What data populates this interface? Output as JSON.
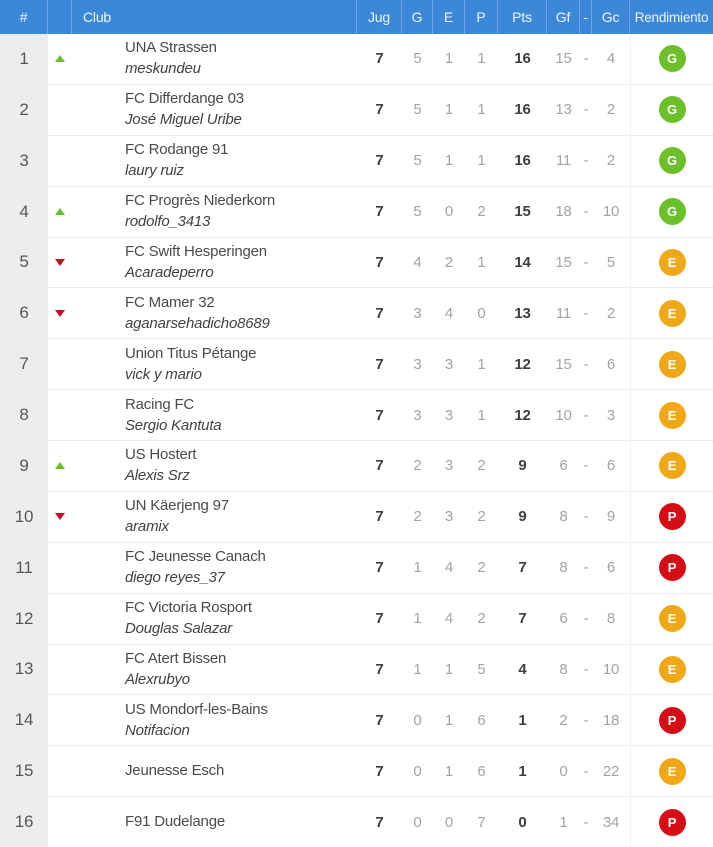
{
  "colors": {
    "header_bg": "#3b88d8",
    "header_text": "#eef6ff",
    "rank_col_bg": "#ededed",
    "row_border": "#ececec",
    "team_text": "#4a4a4a",
    "manager_text": "#424242",
    "text_gray": "#a3a3a3",
    "text_dark": "#3e3e3e",
    "badge_g": "#6cc02a",
    "badge_e": "#f0a818",
    "badge_p": "#d70d15",
    "arrow_up": "#6cbf2a",
    "arrow_down": "#bf1222"
  },
  "table": {
    "columns": {
      "rank": "#",
      "club": "Club",
      "played": "Jug",
      "won": "G",
      "drawn": "E",
      "lost": "P",
      "points": "Pts",
      "goals_for": "Gf",
      "goals_sep": "-",
      "goals_against": "Gc",
      "performance": "Rendimiento"
    },
    "rows": [
      {
        "rank": "1",
        "movement": "up",
        "club": "UNA Strassen",
        "manager": "meskundeu",
        "played": "7",
        "won": "5",
        "drawn": "1",
        "lost": "1",
        "points": "16",
        "gf": "15",
        "sep": "-",
        "gc": "4",
        "performance": "G"
      },
      {
        "rank": "2",
        "movement": "none",
        "club": "FC Differdange 03",
        "manager": "José Miguel Uribe",
        "played": "7",
        "won": "5",
        "drawn": "1",
        "lost": "1",
        "points": "16",
        "gf": "13",
        "sep": "-",
        "gc": "2",
        "performance": "G"
      },
      {
        "rank": "3",
        "movement": "none",
        "club": "FC Rodange 91",
        "manager": "laury ruiz",
        "played": "7",
        "won": "5",
        "drawn": "1",
        "lost": "1",
        "points": "16",
        "gf": "11",
        "sep": "-",
        "gc": "2",
        "performance": "G"
      },
      {
        "rank": "4",
        "movement": "up",
        "club": "FC Progrès Niederkorn",
        "manager": "rodolfo_3413",
        "played": "7",
        "won": "5",
        "drawn": "0",
        "lost": "2",
        "points": "15",
        "gf": "18",
        "sep": "-",
        "gc": "10",
        "performance": "G"
      },
      {
        "rank": "5",
        "movement": "down",
        "club": "FC Swift Hesperingen",
        "manager": "Acaradeperro",
        "played": "7",
        "won": "4",
        "drawn": "2",
        "lost": "1",
        "points": "14",
        "gf": "15",
        "sep": "-",
        "gc": "5",
        "performance": "E"
      },
      {
        "rank": "6",
        "movement": "down",
        "club": "FC Mamer 32",
        "manager": "aganarsehadicho8689",
        "played": "7",
        "won": "3",
        "drawn": "4",
        "lost": "0",
        "points": "13",
        "gf": "11",
        "sep": "-",
        "gc": "2",
        "performance": "E"
      },
      {
        "rank": "7",
        "movement": "none",
        "club": "Union Titus Pétange",
        "manager": "vick y mario",
        "played": "7",
        "won": "3",
        "drawn": "3",
        "lost": "1",
        "points": "12",
        "gf": "15",
        "sep": "-",
        "gc": "6",
        "performance": "E"
      },
      {
        "rank": "8",
        "movement": "none",
        "club": "Racing FC",
        "manager": "Sergio Kantuta",
        "played": "7",
        "won": "3",
        "drawn": "3",
        "lost": "1",
        "points": "12",
        "gf": "10",
        "sep": "-",
        "gc": "3",
        "performance": "E"
      },
      {
        "rank": "9",
        "movement": "up",
        "club": "US Hostert",
        "manager": "Alexis Srz",
        "played": "7",
        "won": "2",
        "drawn": "3",
        "lost": "2",
        "points": "9",
        "gf": "6",
        "sep": "-",
        "gc": "6",
        "performance": "E"
      },
      {
        "rank": "10",
        "movement": "down",
        "club": "UN Käerjeng 97",
        "manager": "aramix",
        "played": "7",
        "won": "2",
        "drawn": "3",
        "lost": "2",
        "points": "9",
        "gf": "8",
        "sep": "-",
        "gc": "9",
        "performance": "P"
      },
      {
        "rank": "11",
        "movement": "none",
        "club": "FC Jeunesse Canach",
        "manager": "diego reyes_37",
        "played": "7",
        "won": "1",
        "drawn": "4",
        "lost": "2",
        "points": "7",
        "gf": "8",
        "sep": "-",
        "gc": "6",
        "performance": "P"
      },
      {
        "rank": "12",
        "movement": "none",
        "club": "FC Victoria Rosport",
        "manager": "Douglas Salazar",
        "played": "7",
        "won": "1",
        "drawn": "4",
        "lost": "2",
        "points": "7",
        "gf": "6",
        "sep": "-",
        "gc": "8",
        "performance": "E"
      },
      {
        "rank": "13",
        "movement": "none",
        "club": "FC Atert Bissen",
        "manager": "Alexrubyo",
        "played": "7",
        "won": "1",
        "drawn": "1",
        "lost": "5",
        "points": "4",
        "gf": "8",
        "sep": "-",
        "gc": "10",
        "performance": "E"
      },
      {
        "rank": "14",
        "movement": "none",
        "club": "US Mondorf-les-Bains",
        "manager": "Notifacion",
        "played": "7",
        "won": "0",
        "drawn": "1",
        "lost": "6",
        "points": "1",
        "gf": "2",
        "sep": "-",
        "gc": "18",
        "performance": "P"
      },
      {
        "rank": "15",
        "movement": "none",
        "club": "Jeunesse Esch",
        "manager": "",
        "played": "7",
        "won": "0",
        "drawn": "1",
        "lost": "6",
        "points": "1",
        "gf": "0",
        "sep": "-",
        "gc": "22",
        "performance": "E"
      },
      {
        "rank": "16",
        "movement": "none",
        "club": "F91 Dudelange",
        "manager": "",
        "played": "7",
        "won": "0",
        "drawn": "0",
        "lost": "7",
        "points": "0",
        "gf": "1",
        "sep": "-",
        "gc": "34",
        "performance": "P"
      }
    ]
  }
}
